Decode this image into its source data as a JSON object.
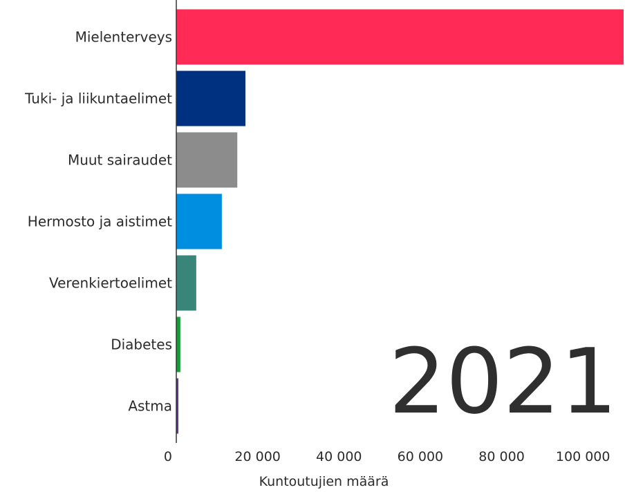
{
  "chart_data": {
    "type": "bar",
    "orientation": "horizontal",
    "categories": [
      "Mielenterveys",
      "Tuki- ja liikuntaelimet",
      "Muut sairaudet",
      "Hermosto ja aistimet",
      "Verenkiertoelimet",
      "Diabetes",
      "Astma"
    ],
    "values": [
      110000,
      17000,
      15000,
      11200,
      4900,
      1000,
      500
    ],
    "colors": [
      "#ff2a55",
      "#003080",
      "#8c8c8c",
      "#008ee0",
      "#3a8579",
      "#1a9a3a",
      "#5e3a8c"
    ],
    "xlabel": "Kuntoutujien määrä",
    "xlim": [
      0,
      110000
    ],
    "xticks": [
      0,
      20000,
      40000,
      60000,
      80000,
      100000
    ],
    "xtick_labels": [
      "0",
      "20 000",
      "40 000",
      "60 000",
      "80 000",
      "100 000"
    ],
    "grid": false,
    "year": "2021"
  }
}
